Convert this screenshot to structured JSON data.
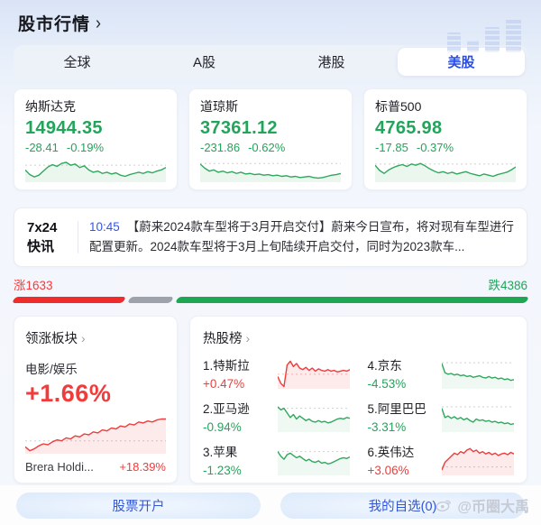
{
  "colors": {
    "up_red": "#F23B3B",
    "down_green": "#23A45B",
    "accent_blue": "#2B4EE0",
    "link_blue": "#3356E8",
    "bar_red": "#F02B2B",
    "bar_gray": "#9EA3AB",
    "bar_green": "#1FA653"
  },
  "header": {
    "title": "股市行情",
    "chevron": "›"
  },
  "tabs": {
    "items": [
      {
        "label": "全球",
        "active": false
      },
      {
        "label": "A股",
        "active": false
      },
      {
        "label": "港股",
        "active": false
      },
      {
        "label": "美股",
        "active": true
      }
    ]
  },
  "indices": [
    {
      "name": "纳斯达克",
      "value": "14944.35",
      "change": "-28.41",
      "change_pct": "-0.19%",
      "dir": "down"
    },
    {
      "name": "道琼斯",
      "value": "37361.12",
      "change": "-231.86",
      "change_pct": "-0.62%",
      "dir": "down"
    },
    {
      "name": "标普500",
      "value": "4765.98",
      "change": "-17.85",
      "change_pct": "-0.37%",
      "dir": "down"
    }
  ],
  "news": {
    "tag_line1": "7x24",
    "tag_line2": "快讯",
    "time": "10:45",
    "text": "【蔚来2024款车型将于3月开启交付】蔚来今日宣布，将对现有车型进行配置更新。2024款车型将于3月上旬陆续开启交付，同时为2023款车..."
  },
  "breadth": {
    "up_label": "涨1633",
    "down_label": "跌4386",
    "up_width": 21.5,
    "flat_width": 8.5,
    "down_width": 66
  },
  "leading_sector": {
    "title": "领涨板块",
    "chevron": "›",
    "sector": "电影/娱乐",
    "pct": "+1.66%",
    "dir": "up",
    "top_stock": "Brera Holdi...",
    "top_stock_pct": "+18.39%"
  },
  "hot_stocks": {
    "title": "热股榜",
    "chevron": "›",
    "items": [
      {
        "display": "1.特斯拉",
        "pct": "+0.47%",
        "dir": "up"
      },
      {
        "display": "2.亚马逊",
        "pct": "-0.94%",
        "dir": "down"
      },
      {
        "display": "3.苹果",
        "pct": "-1.23%",
        "dir": "down"
      },
      {
        "display": "4.京东",
        "pct": "-4.53%",
        "dir": "down"
      },
      {
        "display": "5.阿里巴巴",
        "pct": "-3.31%",
        "dir": "down"
      },
      {
        "display": "6.英伟达",
        "pct": "+3.06%",
        "dir": "up"
      }
    ]
  },
  "footer": {
    "open_account": "股票开户",
    "watchlist": "我的自选(0)",
    "watermark": "@币圈大禹"
  },
  "sparklines": {
    "nasdaq": {
      "baseline": 11,
      "baseline_color": "#cfcfcf",
      "color": "#2FA85D",
      "fill": "rgba(47,168,93,0.10)",
      "points": [
        19,
        27,
        31,
        28,
        21,
        14,
        10,
        13,
        8,
        6,
        11,
        9,
        15,
        12,
        19,
        23,
        21,
        25,
        23,
        26,
        24,
        28,
        30,
        27,
        25,
        23,
        25,
        22,
        24,
        21,
        19,
        15
      ]
    },
    "dow": {
      "baseline": 8,
      "baseline_color": "#cfcfcf",
      "color": "#2FA85D",
      "fill": "rgba(47,168,93,0.10)",
      "points": [
        9,
        16,
        21,
        19,
        23,
        21,
        24,
        22,
        25,
        23,
        26,
        25,
        27,
        26,
        28,
        27,
        29,
        28,
        30,
        29,
        31,
        30,
        32,
        31,
        30,
        32,
        33,
        32,
        30,
        28,
        27,
        25
      ]
    },
    "sp500": {
      "baseline": 9,
      "baseline_color": "#cfcfcf",
      "color": "#2FA85D",
      "fill": "rgba(47,168,93,0.10)",
      "points": [
        11,
        20,
        25,
        19,
        15,
        12,
        10,
        13,
        9,
        11,
        8,
        12,
        17,
        21,
        24,
        22,
        25,
        23,
        26,
        24,
        22,
        25,
        27,
        29,
        26,
        28,
        30,
        27,
        25,
        23,
        19,
        14
      ]
    },
    "sector": {
      "baseline": 27,
      "baseline_color": "#cfcfcf",
      "color": "#F03B3B",
      "fill": "rgba(240,59,59,0.10)",
      "points": [
        33,
        37,
        35,
        32,
        30,
        31,
        28,
        26,
        27,
        24,
        25,
        22,
        23,
        20,
        21,
        18,
        19,
        16,
        17,
        14,
        15,
        12,
        13,
        10,
        11,
        8,
        9,
        7,
        8,
        6,
        5,
        5
      ]
    },
    "tesla": {
      "baseline": 21,
      "baseline_color": "#f1bcbc",
      "color": "#F03B3B",
      "fill": "rgba(240,59,59,0.10)",
      "points": [
        24,
        33,
        37,
        9,
        4,
        11,
        7,
        13,
        15,
        12,
        16,
        13,
        17,
        14,
        16,
        17,
        15,
        17,
        16,
        18,
        17,
        16,
        17,
        15
      ]
    },
    "amazon": {
      "baseline": 9,
      "baseline_color": "#cfcfcf",
      "color": "#2FA85D",
      "fill": "rgba(47,168,93,0.08)",
      "points": [
        7,
        11,
        9,
        15,
        21,
        17,
        23,
        19,
        22,
        25,
        23,
        26,
        27,
        25,
        27,
        26,
        28,
        27,
        25,
        23,
        22,
        23,
        21,
        22
      ]
    },
    "apple": {
      "baseline": 9,
      "baseline_color": "#cfcfcf",
      "color": "#2FA85D",
      "fill": "rgba(47,168,93,0.08)",
      "points": [
        9,
        15,
        19,
        13,
        11,
        14,
        17,
        15,
        18,
        21,
        19,
        22,
        23,
        21,
        24,
        23,
        25,
        24,
        22,
        20,
        18,
        17,
        18,
        16
      ]
    },
    "jd": {
      "baseline": 6,
      "baseline_color": "#cfcfcf",
      "color": "#2FA85D",
      "fill": "rgba(47,168,93,0.08)",
      "points": [
        7,
        19,
        21,
        20,
        22,
        21,
        23,
        22,
        24,
        23,
        25,
        24,
        23,
        25,
        26,
        24,
        26,
        25,
        27,
        26,
        28,
        27,
        29,
        28
      ]
    },
    "alibaba": {
      "baseline": 7,
      "baseline_color": "#cfcfcf",
      "color": "#2FA85D",
      "fill": "rgba(47,168,93,0.08)",
      "points": [
        9,
        21,
        19,
        22,
        20,
        23,
        21,
        24,
        22,
        25,
        27,
        23,
        25,
        24,
        26,
        25,
        27,
        26,
        28,
        27,
        29,
        28,
        30,
        29
      ]
    },
    "nvidia": {
      "baseline": 29,
      "baseline_color": "#f1bcbc",
      "color": "#F03B3B",
      "fill": "rgba(240,59,59,0.10)",
      "points": [
        33,
        23,
        19,
        15,
        11,
        13,
        9,
        11,
        7,
        5,
        9,
        7,
        11,
        9,
        12,
        10,
        13,
        11,
        14,
        12,
        11,
        13,
        10,
        12
      ]
    }
  }
}
